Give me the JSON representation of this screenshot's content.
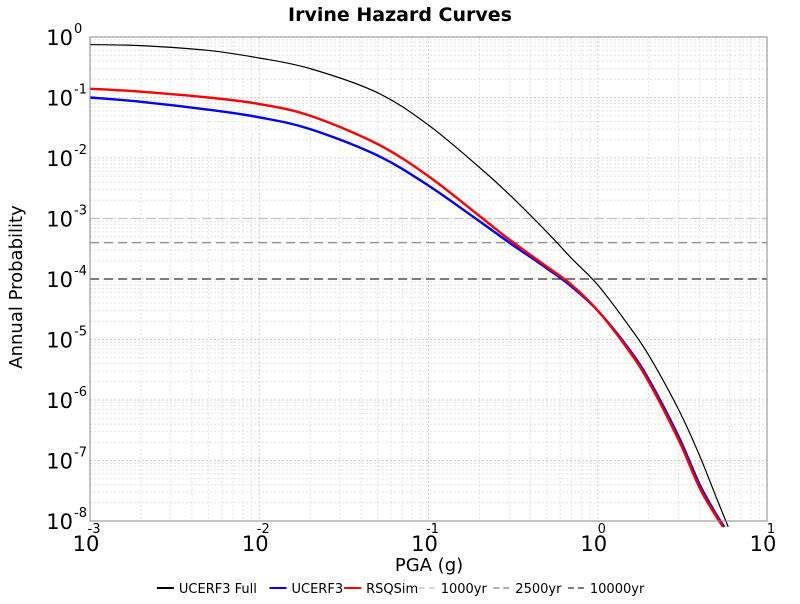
{
  "chart_data": {
    "type": "line",
    "title": "Irvine Hazard Curves",
    "xlabel": "PGA (g)",
    "ylabel": "Annual Probability",
    "x_scale": "log",
    "y_scale": "log",
    "xlim": [
      0.001,
      10
    ],
    "ylim": [
      1e-08,
      1
    ],
    "grid": true,
    "legend_position": "bottom-center",
    "x_ticks": [
      {
        "base": "10",
        "exp": "-3",
        "value": 0.001
      },
      {
        "base": "10",
        "exp": "-2",
        "value": 0.01
      },
      {
        "base": "10",
        "exp": "-1",
        "value": 0.1
      },
      {
        "base": "10",
        "exp": "0",
        "value": 1
      },
      {
        "base": "10",
        "exp": "1",
        "value": 10
      }
    ],
    "y_ticks": [
      {
        "base": "10",
        "exp": "0",
        "value": 1
      },
      {
        "base": "10",
        "exp": "-1",
        "value": 0.1
      },
      {
        "base": "10",
        "exp": "-2",
        "value": 0.01
      },
      {
        "base": "10",
        "exp": "-3",
        "value": 0.001
      },
      {
        "base": "10",
        "exp": "-4",
        "value": 0.0001
      },
      {
        "base": "10",
        "exp": "-5",
        "value": 1e-05
      },
      {
        "base": "10",
        "exp": "-6",
        "value": 1e-06
      },
      {
        "base": "10",
        "exp": "-7",
        "value": 1e-07
      },
      {
        "base": "10",
        "exp": "-8",
        "value": 1e-08
      }
    ],
    "series": [
      {
        "name": "UCERF3 Full",
        "color": "#000000",
        "x": [
          0.001,
          0.002,
          0.005,
          0.01,
          0.02,
          0.05,
          0.1,
          0.2,
          0.3,
          0.5,
          0.7,
          1.0,
          1.5,
          2.0,
          3.0,
          4.0,
          5.0,
          5.9
        ],
        "y": [
          0.75,
          0.72,
          0.6,
          0.45,
          0.3,
          0.12,
          0.035,
          0.007,
          0.0025,
          0.0006,
          0.00022,
          8e-05,
          1.8e-05,
          5.5e-06,
          7e-07,
          1.2e-07,
          2.5e-08,
          8e-09
        ]
      },
      {
        "name": "UCERF3",
        "color": "#0000ff",
        "x": [
          0.001,
          0.002,
          0.005,
          0.01,
          0.02,
          0.05,
          0.1,
          0.2,
          0.3,
          0.5,
          0.7,
          1.0,
          1.5,
          2.0,
          3.0,
          4.0,
          5.0,
          5.6
        ],
        "y": [
          0.1,
          0.085,
          0.063,
          0.047,
          0.03,
          0.011,
          0.0035,
          0.0009,
          0.0004,
          0.00015,
          7.5e-05,
          3e-05,
          7.5e-06,
          2.2e-06,
          2.5e-07,
          4e-08,
          1.3e-08,
          8e-09
        ]
      },
      {
        "name": "RSQSim",
        "color": "#ff0000",
        "x": [
          0.001,
          0.002,
          0.005,
          0.01,
          0.02,
          0.05,
          0.1,
          0.2,
          0.3,
          0.5,
          0.7,
          1.0,
          1.5,
          2.0,
          3.0,
          4.0,
          5.0,
          5.5
        ],
        "y": [
          0.14,
          0.125,
          0.1,
          0.078,
          0.05,
          0.017,
          0.005,
          0.0011,
          0.00045,
          0.00016,
          8e-05,
          3e-05,
          7e-06,
          2e-06,
          2.2e-07,
          3.5e-08,
          1.2e-08,
          8e-09
        ]
      }
    ],
    "reference_lines": [
      {
        "name": "1000yr",
        "y": 0.001,
        "color": "#c8c8c8"
      },
      {
        "name": "2500yr",
        "y": 0.0004,
        "color": "#969696"
      },
      {
        "name": "10000yr",
        "y": 0.0001,
        "color": "#505050"
      }
    ]
  }
}
